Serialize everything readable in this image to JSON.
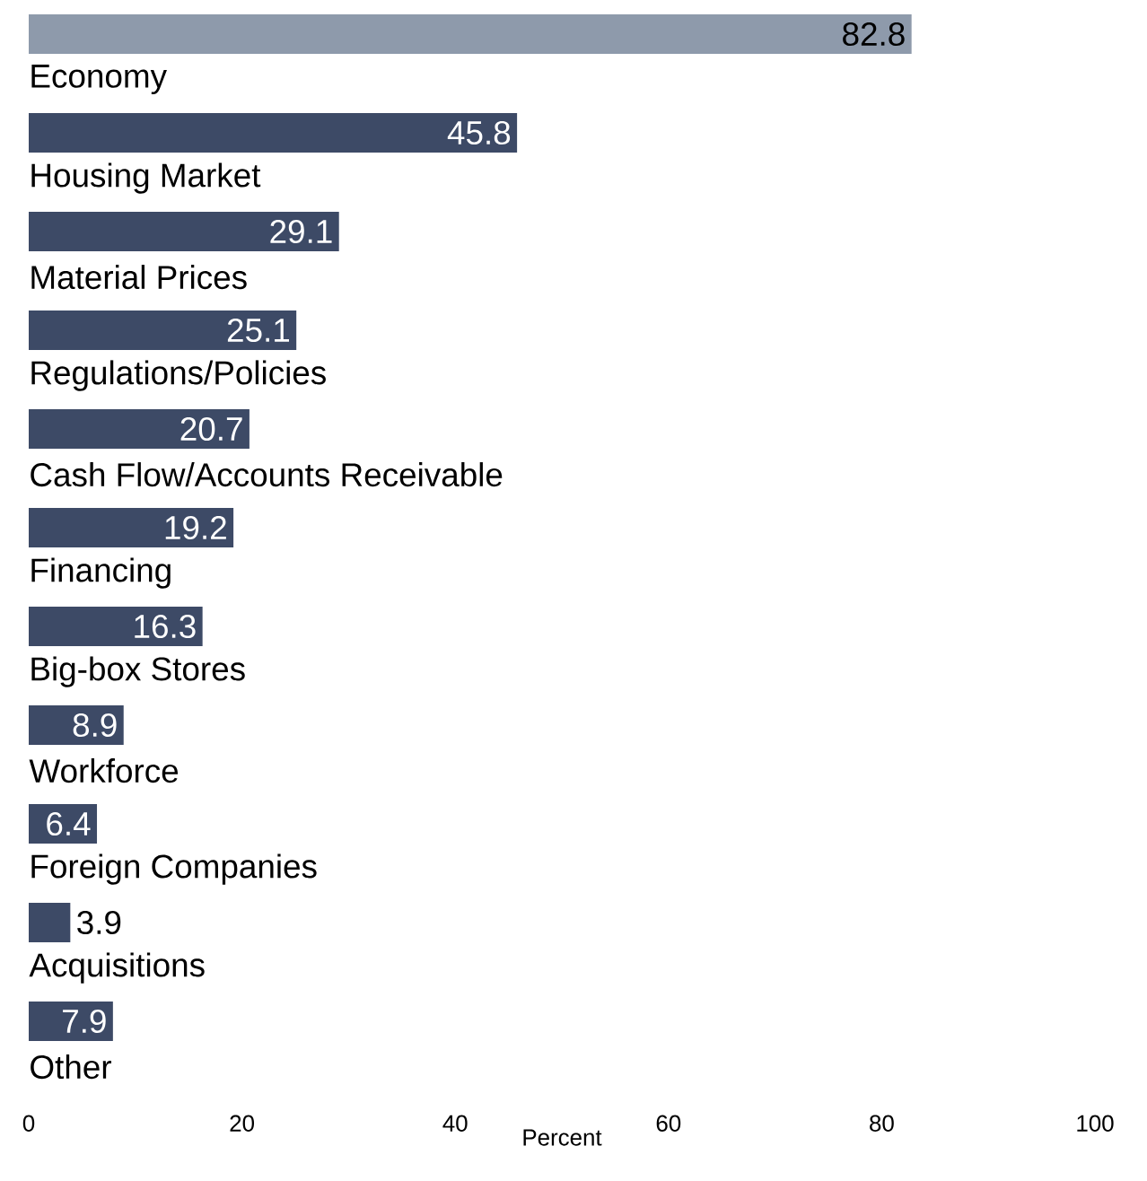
{
  "chart_data": {
    "type": "bar",
    "orientation": "horizontal",
    "xlabel": "Percent",
    "categories": [
      "Economy",
      "Housing Market",
      "Material Prices",
      "Regulations/Policies",
      "Cash Flow/Accounts Receivable",
      "Financing",
      "Big-box Stores",
      "Workforce",
      "Foreign Companies",
      "Acquisitions",
      "Other"
    ],
    "values": [
      82.8,
      45.8,
      29.1,
      25.1,
      20.7,
      19.2,
      16.3,
      8.9,
      6.4,
      3.9,
      7.9
    ],
    "value_labels": [
      "82.8",
      "45.8",
      "29.1",
      "25.1",
      "20.7",
      "19.2",
      "16.3",
      "8.9",
      "6.4",
      "3.9",
      "7.9"
    ],
    "colors": [
      "#8e9aab",
      "#3d4a66",
      "#3d4a66",
      "#3d4a66",
      "#3d4a66",
      "#3d4a66",
      "#3d4a66",
      "#3d4a66",
      "#3d4a66",
      "#3d4a66",
      "#3d4a66"
    ],
    "xlim": [
      0,
      100
    ],
    "xticks": [
      0,
      20,
      40,
      60,
      80,
      100
    ]
  }
}
